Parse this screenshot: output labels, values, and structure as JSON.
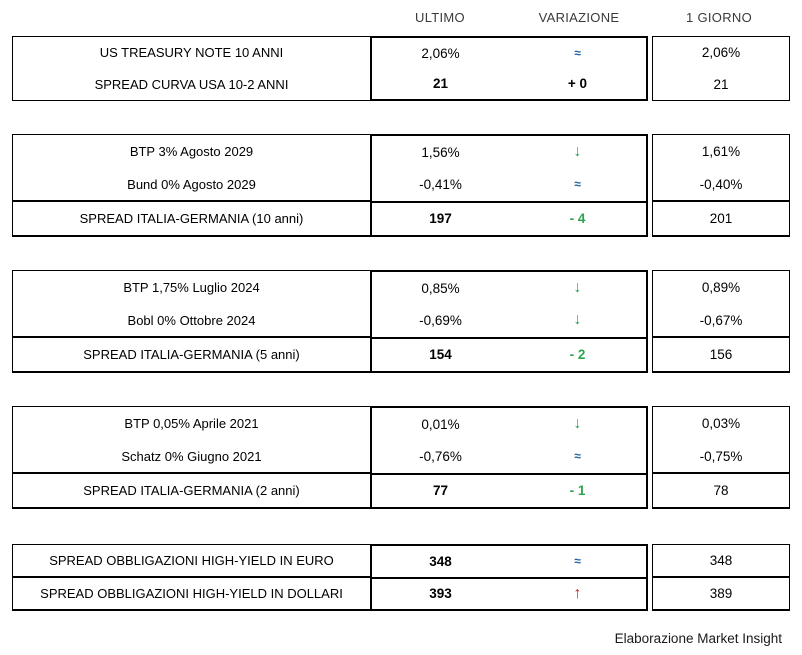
{
  "header": {
    "columns": [
      "ULTIMO",
      "VARIAZIONE",
      "1 GIORNO"
    ]
  },
  "colors": {
    "trend_up_red": "#C4232C",
    "trend_down_green": "#2EA44F",
    "trend_flat_blue": "#1F5FA0",
    "border_black": "#000000",
    "header_text_gray": "#3A3A3A"
  },
  "blocks": [
    {
      "rows": [
        {
          "label": "US TREASURY NOTE 10 ANNI",
          "ultimo": "2,06%",
          "variazione": "≈",
          "trend": "flat",
          "giorno": "2,06%"
        },
        {
          "label": "SPREAD CURVA USA 10-2 ANNI",
          "ultimo": "21",
          "variazione": "+ 0",
          "trend": "zero",
          "giorno": "21"
        }
      ]
    },
    {
      "rows": [
        {
          "label": "BTP 3% Agosto 2029",
          "ultimo": "1,56%",
          "variazione": "↓",
          "trend": "down",
          "giorno": "1,61%"
        },
        {
          "label": "Bund 0% Agosto 2029",
          "ultimo": "-0,41%",
          "variazione": "≈",
          "trend": "flat",
          "giorno": "-0,40%"
        },
        {
          "label": "SPREAD ITALIA-GERMANIA (10 anni)",
          "ultimo": "197",
          "variazione": "- 4",
          "trend": "neg",
          "giorno": "201"
        }
      ]
    },
    {
      "rows": [
        {
          "label": "BTP 1,75% Luglio 2024",
          "ultimo": "0,85%",
          "variazione": "↓",
          "trend": "down",
          "giorno": "0,89%"
        },
        {
          "label": "Bobl 0% Ottobre 2024",
          "ultimo": "-0,69%",
          "variazione": "↓",
          "trend": "down",
          "giorno": "-0,67%"
        },
        {
          "label": "SPREAD ITALIA-GERMANIA (5 anni)",
          "ultimo": "154",
          "variazione": "- 2",
          "trend": "neg",
          "giorno": "156"
        }
      ]
    },
    {
      "rows": [
        {
          "label": "BTP 0,05% Aprile 2021",
          "ultimo": "0,01%",
          "variazione": "↓",
          "trend": "down",
          "giorno": "0,03%"
        },
        {
          "label": "Schatz 0% Giugno 2021",
          "ultimo": "-0,76%",
          "variazione": "≈",
          "trend": "flat",
          "giorno": "-0,75%"
        },
        {
          "label": "SPREAD ITALIA-GERMANIA (2 anni)",
          "ultimo": "77",
          "variazione": "- 1",
          "trend": "neg",
          "giorno": "78"
        }
      ]
    },
    {
      "rows": [
        {
          "label": "SPREAD OBBLIGAZIONI HIGH-YIELD IN EURO",
          "ultimo": "348",
          "variazione": "≈",
          "trend": "flat",
          "giorno": "348"
        },
        {
          "label": "SPREAD OBBLIGAZIONI HIGH-YIELD IN DOLLARI",
          "ultimo": "393",
          "variazione": "↑",
          "trend": "up",
          "giorno": "389"
        }
      ]
    }
  ],
  "footer": {
    "credit": "Elaborazione Market Insight"
  }
}
